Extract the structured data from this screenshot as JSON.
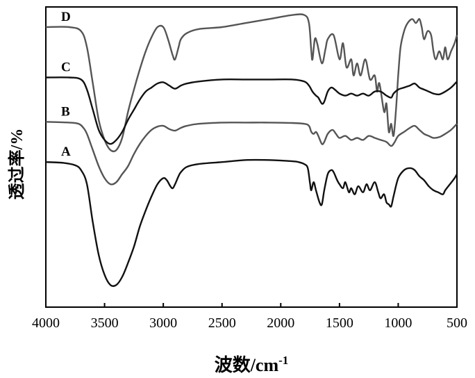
{
  "chart_data": {
    "type": "line",
    "xlabel": "波数/cm",
    "xlabel_superscript": "-1",
    "ylabel": "透过率/%",
    "xlim": [
      4000,
      500
    ],
    "x_reversed": true,
    "xticks": [
      4000,
      3500,
      3000,
      2500,
      2000,
      1500,
      1000,
      500
    ],
    "yticks_shown": false,
    "grid": false,
    "series_names_printed_as_labels": true,
    "series": [
      {
        "name": "D",
        "color": "#555555",
        "baseline": 4.15,
        "points": [
          [
            4000,
            0.0
          ],
          [
            3800,
            0.0
          ],
          [
            3700,
            -0.1
          ],
          [
            3650,
            -0.5
          ],
          [
            3600,
            -1.4
          ],
          [
            3550,
            -2.3
          ],
          [
            3500,
            -2.8
          ],
          [
            3450,
            -3.05
          ],
          [
            3400,
            -3.05
          ],
          [
            3350,
            -2.75
          ],
          [
            3300,
            -2.1
          ],
          [
            3250,
            -1.55
          ],
          [
            3200,
            -1.05
          ],
          [
            3150,
            -0.6
          ],
          [
            3100,
            -0.25
          ],
          [
            3050,
            0.0
          ],
          [
            3000,
            0.0
          ],
          [
            2960,
            -0.3
          ],
          [
            2920,
            -0.7
          ],
          [
            2900,
            -0.8
          ],
          [
            2870,
            -0.5
          ],
          [
            2850,
            -0.3
          ],
          [
            2800,
            -0.15
          ],
          [
            2700,
            -0.05
          ],
          [
            2500,
            0.0
          ],
          [
            2300,
            0.1
          ],
          [
            2100,
            0.2
          ],
          [
            1900,
            0.3
          ],
          [
            1800,
            0.3
          ],
          [
            1760,
            0.1
          ],
          [
            1740,
            -0.6
          ],
          [
            1730,
            -0.8
          ],
          [
            1710,
            -0.3
          ],
          [
            1690,
            -0.4
          ],
          [
            1650,
            -0.9
          ],
          [
            1620,
            -0.55
          ],
          [
            1600,
            -0.3
          ],
          [
            1550,
            -0.2
          ],
          [
            1500,
            -0.8
          ],
          [
            1470,
            -0.4
          ],
          [
            1440,
            -1.0
          ],
          [
            1400,
            -0.8
          ],
          [
            1380,
            -1.2
          ],
          [
            1350,
            -0.9
          ],
          [
            1320,
            -1.2
          ],
          [
            1280,
            -0.8
          ],
          [
            1240,
            -1.3
          ],
          [
            1200,
            -1.2
          ],
          [
            1180,
            -1.6
          ],
          [
            1160,
            -1.4
          ],
          [
            1120,
            -2.1
          ],
          [
            1100,
            -1.9
          ],
          [
            1080,
            -2.6
          ],
          [
            1060,
            -2.4
          ],
          [
            1040,
            -2.7
          ],
          [
            1020,
            -2.1
          ],
          [
            1000,
            -1.2
          ],
          [
            980,
            -0.5
          ],
          [
            950,
            -0.1
          ],
          [
            920,
            0.1
          ],
          [
            880,
            0.2
          ],
          [
            850,
            0.1
          ],
          [
            820,
            0.2
          ],
          [
            800,
            0.0
          ],
          [
            780,
            -0.3
          ],
          [
            750,
            -0.1
          ],
          [
            720,
            -0.2
          ],
          [
            700,
            -0.6
          ],
          [
            680,
            -0.8
          ],
          [
            650,
            -0.6
          ],
          [
            620,
            -0.8
          ],
          [
            600,
            -0.5
          ],
          [
            580,
            -0.8
          ],
          [
            550,
            -0.6
          ],
          [
            520,
            -0.4
          ],
          [
            500,
            -0.2
          ]
        ]
      },
      {
        "name": "C",
        "color": "#111111",
        "baseline": 2.9,
        "points": [
          [
            4000,
            0.0
          ],
          [
            3800,
            0.0
          ],
          [
            3700,
            -0.05
          ],
          [
            3650,
            -0.3
          ],
          [
            3600,
            -0.8
          ],
          [
            3550,
            -1.3
          ],
          [
            3500,
            -1.55
          ],
          [
            3450,
            -1.65
          ],
          [
            3400,
            -1.55
          ],
          [
            3350,
            -1.35
          ],
          [
            3300,
            -1.05
          ],
          [
            3250,
            -0.8
          ],
          [
            3200,
            -0.55
          ],
          [
            3150,
            -0.35
          ],
          [
            3100,
            -0.25
          ],
          [
            3050,
            -0.15
          ],
          [
            3000,
            -0.12
          ],
          [
            2950,
            -0.2
          ],
          [
            2900,
            -0.28
          ],
          [
            2850,
            -0.2
          ],
          [
            2800,
            -0.15
          ],
          [
            2700,
            -0.1
          ],
          [
            2500,
            -0.05
          ],
          [
            2300,
            -0.05
          ],
          [
            2100,
            -0.05
          ],
          [
            1900,
            -0.05
          ],
          [
            1800,
            -0.1
          ],
          [
            1760,
            -0.2
          ],
          [
            1730,
            -0.35
          ],
          [
            1700,
            -0.45
          ],
          [
            1680,
            -0.5
          ],
          [
            1650,
            -0.65
          ],
          [
            1630,
            -0.6
          ],
          [
            1600,
            -0.35
          ],
          [
            1570,
            -0.25
          ],
          [
            1540,
            -0.3
          ],
          [
            1500,
            -0.4
          ],
          [
            1450,
            -0.45
          ],
          [
            1400,
            -0.4
          ],
          [
            1350,
            -0.45
          ],
          [
            1300,
            -0.4
          ],
          [
            1250,
            -0.45
          ],
          [
            1200,
            -0.35
          ],
          [
            1150,
            -0.35
          ],
          [
            1100,
            -0.45
          ],
          [
            1060,
            -0.5
          ],
          [
            1040,
            -0.4
          ],
          [
            1000,
            -0.3
          ],
          [
            950,
            -0.25
          ],
          [
            900,
            -0.2
          ],
          [
            860,
            -0.15
          ],
          [
            820,
            -0.25
          ],
          [
            780,
            -0.3
          ],
          [
            740,
            -0.35
          ],
          [
            700,
            -0.4
          ],
          [
            650,
            -0.42
          ],
          [
            600,
            -0.35
          ],
          [
            550,
            -0.25
          ],
          [
            500,
            -0.1
          ]
        ]
      },
      {
        "name": "B",
        "color": "#555555",
        "baseline": 1.8,
        "points": [
          [
            4000,
            0.0
          ],
          [
            3800,
            -0.02
          ],
          [
            3720,
            -0.05
          ],
          [
            3680,
            -0.15
          ],
          [
            3650,
            -0.3
          ],
          [
            3600,
            -0.7
          ],
          [
            3550,
            -1.1
          ],
          [
            3500,
            -1.4
          ],
          [
            3450,
            -1.55
          ],
          [
            3400,
            -1.5
          ],
          [
            3350,
            -1.3
          ],
          [
            3300,
            -1.1
          ],
          [
            3250,
            -0.8
          ],
          [
            3200,
            -0.55
          ],
          [
            3150,
            -0.35
          ],
          [
            3100,
            -0.2
          ],
          [
            3050,
            -0.12
          ],
          [
            3000,
            -0.1
          ],
          [
            2950,
            -0.18
          ],
          [
            2900,
            -0.22
          ],
          [
            2850,
            -0.15
          ],
          [
            2800,
            -0.1
          ],
          [
            2700,
            -0.05
          ],
          [
            2500,
            -0.02
          ],
          [
            2300,
            -0.02
          ],
          [
            2100,
            -0.02
          ],
          [
            1900,
            -0.03
          ],
          [
            1800,
            -0.05
          ],
          [
            1760,
            -0.1
          ],
          [
            1740,
            -0.25
          ],
          [
            1720,
            -0.3
          ],
          [
            1700,
            -0.25
          ],
          [
            1680,
            -0.35
          ],
          [
            1650,
            -0.55
          ],
          [
            1630,
            -0.5
          ],
          [
            1600,
            -0.3
          ],
          [
            1560,
            -0.2
          ],
          [
            1530,
            -0.3
          ],
          [
            1500,
            -0.4
          ],
          [
            1450,
            -0.35
          ],
          [
            1400,
            -0.45
          ],
          [
            1350,
            -0.4
          ],
          [
            1300,
            -0.45
          ],
          [
            1250,
            -0.35
          ],
          [
            1200,
            -0.4
          ],
          [
            1150,
            -0.45
          ],
          [
            1100,
            -0.5
          ],
          [
            1060,
            -0.6
          ],
          [
            1030,
            -0.5
          ],
          [
            1000,
            -0.35
          ],
          [
            950,
            -0.25
          ],
          [
            900,
            -0.15
          ],
          [
            860,
            -0.1
          ],
          [
            820,
            -0.2
          ],
          [
            780,
            -0.3
          ],
          [
            740,
            -0.35
          ],
          [
            700,
            -0.4
          ],
          [
            650,
            -0.38
          ],
          [
            600,
            -0.3
          ],
          [
            550,
            -0.2
          ],
          [
            500,
            -0.05
          ]
        ]
      },
      {
        "name": "A",
        "color": "#111111",
        "baseline": 0.8,
        "points": [
          [
            4000,
            0.0
          ],
          [
            3850,
            -0.02
          ],
          [
            3750,
            -0.08
          ],
          [
            3700,
            -0.2
          ],
          [
            3650,
            -0.55
          ],
          [
            3600,
            -1.5
          ],
          [
            3550,
            -2.3
          ],
          [
            3500,
            -2.8
          ],
          [
            3450,
            -3.05
          ],
          [
            3400,
            -3.05
          ],
          [
            3350,
            -2.85
          ],
          [
            3300,
            -2.5
          ],
          [
            3250,
            -2.1
          ],
          [
            3200,
            -1.6
          ],
          [
            3150,
            -1.2
          ],
          [
            3100,
            -0.85
          ],
          [
            3050,
            -0.55
          ],
          [
            3000,
            -0.4
          ],
          [
            2970,
            -0.45
          ],
          [
            2940,
            -0.6
          ],
          [
            2920,
            -0.65
          ],
          [
            2900,
            -0.55
          ],
          [
            2870,
            -0.35
          ],
          [
            2850,
            -0.25
          ],
          [
            2800,
            -0.12
          ],
          [
            2700,
            -0.05
          ],
          [
            2500,
            0.0
          ],
          [
            2300,
            0.05
          ],
          [
            2100,
            0.05
          ],
          [
            1900,
            0.02
          ],
          [
            1850,
            0.0
          ],
          [
            1800,
            -0.05
          ],
          [
            1770,
            -0.15
          ],
          [
            1750,
            -0.55
          ],
          [
            1740,
            -0.7
          ],
          [
            1720,
            -0.5
          ],
          [
            1700,
            -0.7
          ],
          [
            1670,
            -1.0
          ],
          [
            1650,
            -1.05
          ],
          [
            1630,
            -0.7
          ],
          [
            1600,
            -0.3
          ],
          [
            1570,
            -0.2
          ],
          [
            1550,
            -0.25
          ],
          [
            1520,
            -0.45
          ],
          [
            1500,
            -0.55
          ],
          [
            1470,
            -0.65
          ],
          [
            1450,
            -0.5
          ],
          [
            1420,
            -0.75
          ],
          [
            1400,
            -0.65
          ],
          [
            1370,
            -0.8
          ],
          [
            1340,
            -0.6
          ],
          [
            1300,
            -0.75
          ],
          [
            1270,
            -0.55
          ],
          [
            1240,
            -0.7
          ],
          [
            1200,
            -0.5
          ],
          [
            1170,
            -0.75
          ],
          [
            1150,
            -0.9
          ],
          [
            1120,
            -0.8
          ],
          [
            1100,
            -1.0
          ],
          [
            1080,
            -1.05
          ],
          [
            1060,
            -1.1
          ],
          [
            1040,
            -0.85
          ],
          [
            1000,
            -0.4
          ],
          [
            950,
            -0.2
          ],
          [
            900,
            -0.15
          ],
          [
            860,
            -0.2
          ],
          [
            820,
            -0.35
          ],
          [
            780,
            -0.45
          ],
          [
            740,
            -0.6
          ],
          [
            700,
            -0.7
          ],
          [
            660,
            -0.75
          ],
          [
            620,
            -0.8
          ],
          [
            600,
            -0.7
          ],
          [
            560,
            -0.55
          ],
          [
            520,
            -0.4
          ],
          [
            500,
            -0.3
          ]
        ]
      }
    ]
  }
}
